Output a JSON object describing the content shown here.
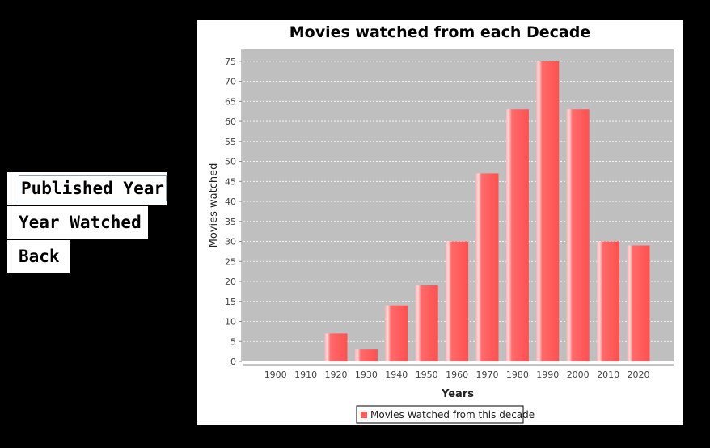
{
  "nav": {
    "published_label": "Published Year",
    "watched_label": "Year Watched",
    "back_label": "Back"
  },
  "chart_data": {
    "type": "bar",
    "title": "Movies watched from each Decade",
    "xlabel": "Years",
    "ylabel": "Movies watched",
    "categories": [
      "1900",
      "1910",
      "1920",
      "1930",
      "1940",
      "1950",
      "1960",
      "1970",
      "1980",
      "1990",
      "2000",
      "2010",
      "2020"
    ],
    "series": [
      {
        "name": "Movies Watched from this decade",
        "values": [
          0,
          0,
          7,
          3,
          14,
          19,
          30,
          47,
          63,
          75,
          63,
          30,
          29
        ]
      }
    ],
    "ylim": [
      0,
      78
    ],
    "yticks": [
      0,
      5,
      10,
      15,
      20,
      25,
      30,
      35,
      40,
      45,
      50,
      55,
      60,
      65,
      70,
      75
    ],
    "grid": true,
    "legend": "bottom",
    "colors": {
      "bar": "#ff5a5a",
      "plot_background": "#bfbfbf",
      "gridline": "#ffffff"
    }
  }
}
